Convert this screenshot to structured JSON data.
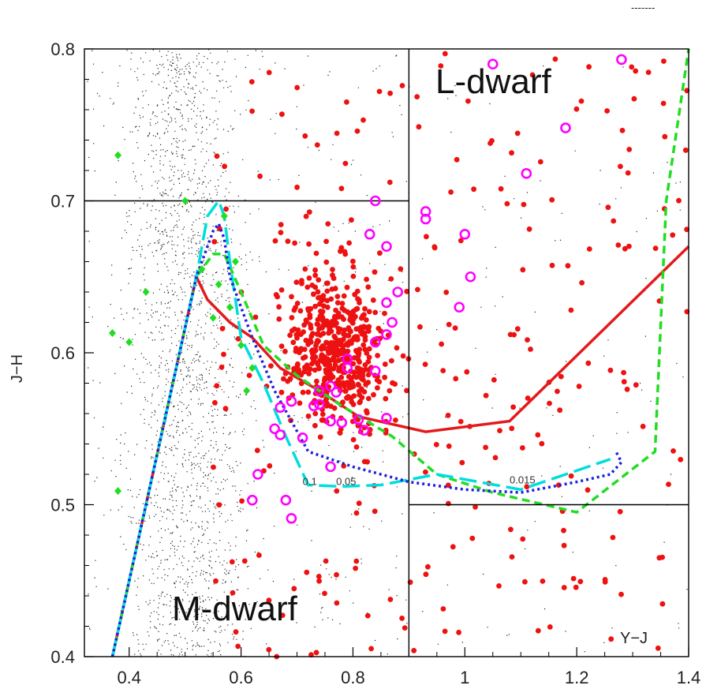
{
  "chart_data": {
    "type": "scatter",
    "xlabel": "Y−J",
    "ylabel": "J−H",
    "xlim": [
      0.32,
      1.4
    ],
    "ylim": [
      0.4,
      0.8
    ],
    "xticks": [
      0.4,
      0.6,
      0.8,
      1,
      1.2,
      1.4
    ],
    "xtick_labels": [
      "0.4",
      "0.6",
      "0.8",
      "1",
      "1.2",
      "1.4"
    ],
    "yticks": [
      0.4,
      0.5,
      0.6,
      0.7,
      0.8
    ],
    "ytick_labels": [
      "0.4",
      "0.5",
      "0.6",
      "0.7",
      "0.8"
    ],
    "grid": false,
    "legend_fragment": "-------",
    "region_labels": [
      {
        "text": "L-dwarf",
        "x": 1.01,
        "y": 0.77
      },
      {
        "text": "M-dwarf",
        "x": 0.58,
        "y": 0.42
      }
    ],
    "boundary_lines": [
      {
        "name": "horizontal-upper",
        "x": [
          0.32,
          0.9
        ],
        "y": [
          0.7,
          0.7
        ],
        "color": "#000000"
      },
      {
        "name": "vertical",
        "x": [
          0.9,
          0.9
        ],
        "y": [
          0.4,
          0.8
        ],
        "color": "#000000"
      },
      {
        "name": "horizontal-lower",
        "x": [
          0.9,
          1.4
        ],
        "y": [
          0.5,
          0.5
        ],
        "color": "#000000"
      }
    ],
    "curve_annotations": [
      {
        "text": "0.1",
        "x": 0.71,
        "y": 0.513
      },
      {
        "text": "0.05",
        "x": 0.77,
        "y": 0.513
      },
      {
        "text": "0.015",
        "x": 1.08,
        "y": 0.514
      }
    ],
    "series": [
      {
        "style": "solid",
        "color": "#e31a1c",
        "x": [
          0.37,
          0.52,
          0.54,
          0.58,
          0.62,
          0.67,
          0.74,
          0.81,
          0.93,
          1.08,
          1.4
        ],
        "y": [
          0.4,
          0.65,
          0.635,
          0.62,
          0.61,
          0.59,
          0.575,
          0.558,
          0.548,
          0.555,
          0.67
        ]
      },
      {
        "style": "dashed",
        "color": "#22dd22",
        "x": [
          0.37,
          0.52,
          0.55,
          0.57,
          0.6,
          0.64,
          0.7,
          0.78,
          0.87,
          0.95,
          1.05,
          1.2,
          1.34,
          1.36,
          1.4
        ],
        "y": [
          0.4,
          0.65,
          0.665,
          0.665,
          0.64,
          0.605,
          0.585,
          0.565,
          0.545,
          0.52,
          0.508,
          0.495,
          0.535,
          0.7,
          0.8
        ]
      },
      {
        "style": "long-dashed",
        "color": "#00dddd",
        "x": [
          0.37,
          0.52,
          0.54,
          0.56,
          0.57,
          0.58,
          0.6,
          0.64,
          0.68,
          0.72,
          0.78,
          0.85,
          0.95,
          1.1,
          1.26
        ],
        "y": [
          0.4,
          0.65,
          0.69,
          0.7,
          0.69,
          0.66,
          0.61,
          0.58,
          0.545,
          0.513,
          0.512,
          0.513,
          0.52,
          0.51,
          0.53
        ]
      },
      {
        "style": "dotted",
        "color": "#1f1fdd",
        "x": [
          0.37,
          0.52,
          0.55,
          0.56,
          0.57,
          0.58,
          0.62,
          0.66,
          0.72,
          0.8,
          0.9,
          1.0,
          1.1,
          1.2,
          1.26,
          1.28,
          1.27
        ],
        "y": [
          0.4,
          0.65,
          0.68,
          0.685,
          0.675,
          0.65,
          0.61,
          0.575,
          0.535,
          0.525,
          0.515,
          0.51,
          0.508,
          0.515,
          0.52,
          0.528,
          0.535
        ]
      }
    ],
    "markers": [
      {
        "kind": "filled-diamond",
        "color": "#22dd22",
        "points": [
          [
            0.38,
            0.73
          ],
          [
            0.5,
            0.7
          ],
          [
            0.43,
            0.64
          ],
          [
            0.37,
            0.613
          ],
          [
            0.4,
            0.607
          ],
          [
            0.38,
            0.509
          ],
          [
            0.57,
            0.69
          ],
          [
            0.55,
            0.623
          ],
          [
            0.53,
            0.655
          ],
          [
            0.56,
            0.645
          ],
          [
            0.59,
            0.66
          ],
          [
            0.6,
            0.605
          ],
          [
            0.62,
            0.59
          ],
          [
            0.58,
            0.63
          ],
          [
            0.61,
            0.575
          ]
        ]
      },
      {
        "kind": "open-circle",
        "color": "#ff00ff",
        "points": [
          [
            1.05,
            0.79
          ],
          [
            1.28,
            0.793
          ],
          [
            1.18,
            0.748
          ],
          [
            1.11,
            0.718
          ],
          [
            0.84,
            0.7
          ],
          [
            0.93,
            0.693
          ],
          [
            0.93,
            0.688
          ],
          [
            0.83,
            0.678
          ],
          [
            1.0,
            0.678
          ],
          [
            0.86,
            0.67
          ],
          [
            1.01,
            0.65
          ],
          [
            0.88,
            0.64
          ],
          [
            0.86,
            0.633
          ],
          [
            0.99,
            0.63
          ],
          [
            0.87,
            0.62
          ],
          [
            0.86,
            0.612
          ],
          [
            0.84,
            0.607
          ],
          [
            0.79,
            0.596
          ],
          [
            0.79,
            0.59
          ],
          [
            0.84,
            0.588
          ],
          [
            0.76,
            0.578
          ],
          [
            0.74,
            0.575
          ],
          [
            0.77,
            0.574
          ],
          [
            0.69,
            0.568
          ],
          [
            0.74,
            0.566
          ],
          [
            0.73,
            0.565
          ],
          [
            0.67,
            0.564
          ],
          [
            0.81,
            0.556
          ],
          [
            0.86,
            0.557
          ],
          [
            0.76,
            0.555
          ],
          [
            0.78,
            0.554
          ],
          [
            0.82,
            0.549
          ],
          [
            0.66,
            0.55
          ],
          [
            0.67,
            0.546
          ],
          [
            0.71,
            0.544
          ],
          [
            0.63,
            0.52
          ],
          [
            0.62,
            0.503
          ],
          [
            0.69,
            0.491
          ],
          [
            0.76,
            0.525
          ],
          [
            0.68,
            0.503
          ]
        ]
      },
      {
        "kind": "filled-circle",
        "color": "#ee1111",
        "note": "dense cloud of red dots spanning x 0.55-1.4, y 0.4-0.8, concentrated near x 0.6-0.8, y 0.55-0.68"
      },
      {
        "kind": "small-dot",
        "color": "#111111",
        "note": "dense field of black points concentrated between x 0.33-0.7, sparse elsewhere"
      }
    ]
  }
}
